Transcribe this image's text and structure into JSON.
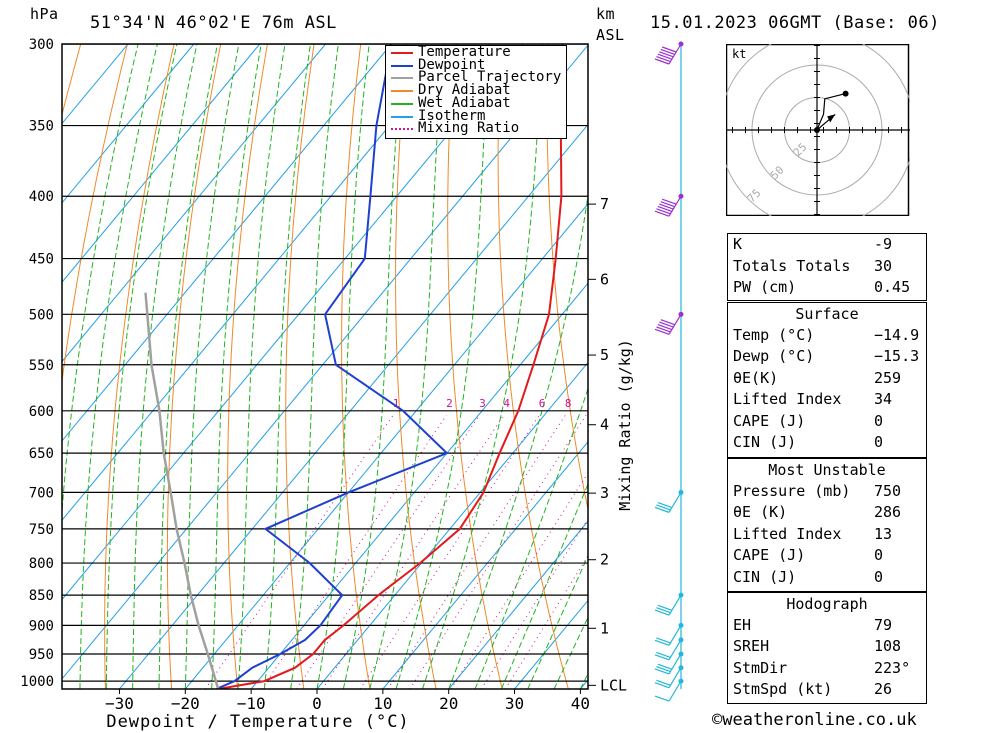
{
  "header": {
    "hpa": "hPa",
    "location": "51°34'N  46°02'E  76m  ASL",
    "km": "km",
    "asl": "ASL",
    "datetime": "15.01.2023  06GMT  (Base: 06)"
  },
  "chart_data": {
    "type": "line",
    "title": "",
    "xlabel": "Dewpoint / Temperature (°C)",
    "ylabel": "hPa",
    "xlim": [
      -40,
      40
    ],
    "x_ticks": [
      -30,
      -20,
      -10,
      0,
      10,
      20,
      30,
      40
    ],
    "x_tick_labels": [
      "−30",
      "−20",
      "−10",
      "0",
      "10",
      "20",
      "30",
      "40"
    ],
    "pressure_levels": [
      300,
      350,
      400,
      450,
      500,
      550,
      600,
      650,
      700,
      750,
      800,
      850,
      900,
      950,
      1000
    ],
    "plim": [
      300,
      1015
    ],
    "km_axis": {
      "label": "km ASL",
      "ticks": [
        {
          "label": "7",
          "p": 406
        },
        {
          "label": "6",
          "p": 468
        },
        {
          "label": "5",
          "p": 540
        },
        {
          "label": "4",
          "p": 616
        },
        {
          "label": "3",
          "p": 701
        },
        {
          "label": "2",
          "p": 795
        },
        {
          "label": "1",
          "p": 905
        },
        {
          "label": "LCL",
          "p": 1008
        }
      ]
    },
    "mixing_ratio_axis_label": "Mixing Ratio (g/kg)",
    "mixing_ratio_values": [
      1,
      2,
      3,
      4,
      6,
      8,
      10,
      15,
      20,
      25
    ],
    "legend": [
      "Temperature",
      "Dewpoint",
      "Parcel Trajectory",
      "Dry Adiabat",
      "Wet Adiabat",
      "Isotherm",
      "Mixing Ratio"
    ],
    "legend_position": "top-right",
    "colors": {
      "temperature": "#e31a1c",
      "dewpoint": "#1f3fd0",
      "parcel": "#a0a0a0",
      "dry_adiabat": "#ee8a2a",
      "wet_adiabat": "#1fb51f",
      "isotherm": "#22a0e8",
      "mixing_ratio": "#d0129a",
      "wind": "#9b30d0",
      "wind_low": "#22b8d8"
    },
    "series": [
      {
        "name": "Temperature",
        "points": [
          [
            1015,
            -15.0
          ],
          [
            1000,
            -9.0
          ],
          [
            975,
            -6.0
          ],
          [
            950,
            -5.0
          ],
          [
            925,
            -5.0
          ],
          [
            900,
            -4.0
          ],
          [
            850,
            -2.5
          ],
          [
            800,
            -0.2
          ],
          [
            750,
            1.5
          ],
          [
            700,
            0.5
          ],
          [
            650,
            -2.0
          ],
          [
            600,
            -4.5
          ],
          [
            550,
            -8.0
          ],
          [
            500,
            -12.0
          ],
          [
            450,
            -18.0
          ],
          [
            400,
            -25.0
          ],
          [
            350,
            -34.0
          ],
          [
            300,
            -44.0
          ]
        ]
      },
      {
        "name": "Dewpoint",
        "points": [
          [
            1015,
            -15.3
          ],
          [
            1000,
            -13.5
          ],
          [
            975,
            -12.5
          ],
          [
            950,
            -10.0
          ],
          [
            925,
            -8.0
          ],
          [
            900,
            -7.5
          ],
          [
            850,
            -8.0
          ],
          [
            800,
            -17.0
          ],
          [
            750,
            -28.0
          ],
          [
            700,
            -20.0
          ],
          [
            650,
            -10.0
          ],
          [
            600,
            -22.0
          ],
          [
            550,
            -38.0
          ],
          [
            500,
            -46.0
          ],
          [
            450,
            -47.0
          ],
          [
            400,
            -54.0
          ],
          [
            350,
            -62.0
          ],
          [
            300,
            -70.0
          ]
        ]
      },
      {
        "name": "Parcel Trajectory",
        "points": [
          [
            1015,
            -15.0
          ],
          [
            950,
            -21.0
          ],
          [
            900,
            -26.0
          ],
          [
            850,
            -31.0
          ],
          [
            800,
            -36.0
          ],
          [
            750,
            -41.5
          ],
          [
            700,
            -47.0
          ],
          [
            650,
            -53.0
          ],
          [
            600,
            -59.0
          ],
          [
            550,
            -66.0
          ],
          [
            500,
            -73.0
          ],
          [
            480,
            -76.0
          ]
        ]
      }
    ],
    "wind_barbs": [
      {
        "p": 300,
        "speed_kt": 60,
        "color": "wind"
      },
      {
        "p": 400,
        "speed_kt": 55,
        "color": "wind"
      },
      {
        "p": 500,
        "speed_kt": 50,
        "color": "wind"
      },
      {
        "p": 700,
        "speed_kt": 30,
        "color": "wind_low"
      },
      {
        "p": 850,
        "speed_kt": 25,
        "color": "wind_low"
      },
      {
        "p": 900,
        "speed_kt": 20,
        "color": "wind_low"
      },
      {
        "p": 925,
        "speed_kt": 20,
        "color": "wind_low"
      },
      {
        "p": 950,
        "speed_kt": 25,
        "color": "wind_low"
      },
      {
        "p": 975,
        "speed_kt": 20,
        "color": "wind_low"
      },
      {
        "p": 1000,
        "speed_kt": 10,
        "color": "wind_low"
      }
    ],
    "hodograph": {
      "unit": "kt",
      "ring_labels": [
        "25",
        "50",
        "75"
      ],
      "trace_kt": [
        [
          0,
          0
        ],
        [
          2,
          5
        ],
        [
          5,
          12
        ],
        [
          6,
          24
        ],
        [
          22,
          28
        ]
      ],
      "storm_motion_kt": [
        [
          0,
          0
        ],
        [
          14,
          12
        ]
      ]
    }
  },
  "indices": {
    "k_label": "K",
    "k": "-9",
    "tt_label": "Totals Totals",
    "tt": "30",
    "pw_label": "PW (cm)",
    "pw": "0.45",
    "surface": {
      "title": "Surface",
      "temp_label": "Temp (°C)",
      "temp": "−14.9",
      "dewp_label": "Dewp (°C)",
      "dewp": "−15.3",
      "thetae_label": "θE(K)",
      "thetae": "259",
      "li_label": "Lifted Index",
      "li": "34",
      "cape_label": "CAPE (J)",
      "cape": "0",
      "cin_label": "CIN (J)",
      "cin": "0"
    },
    "most_unstable": {
      "title": "Most Unstable",
      "pressure_label": "Pressure (mb)",
      "pressure": "750",
      "thetae_label": "θE (K)",
      "thetae": "286",
      "li_label": "Lifted Index",
      "li": "13",
      "cape_label": "CAPE (J)",
      "cape": "0",
      "cin_label": "CIN (J)",
      "cin": "0"
    },
    "hodograph": {
      "title": "Hodograph",
      "eh_label": "EH",
      "eh": "79",
      "srh_label": "SREH",
      "srh": "108",
      "stmdir_label": "StmDir",
      "stmdir": "223°",
      "stmspd_label": "StmSpd (kt)",
      "stmspd": "26"
    }
  },
  "footer": {
    "copyright": "©weatheronline.co.uk"
  }
}
